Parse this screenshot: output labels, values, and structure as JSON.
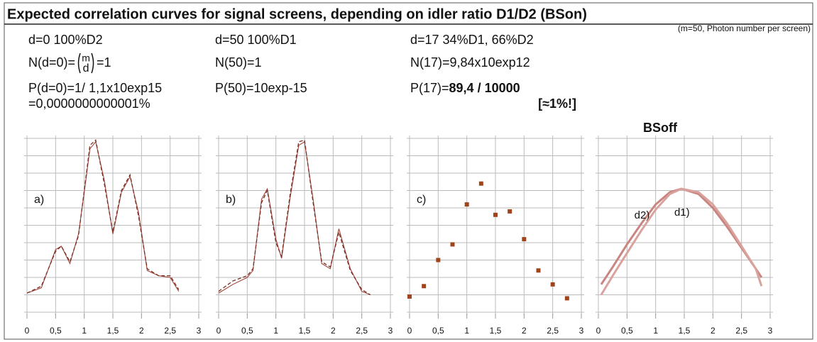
{
  "title": "Expected correlation curves for signal screens, depending on idler ratio D1/D2  (BSon)",
  "subtitle": "(m=50, Photon number per screen)",
  "chart_data": [
    {
      "type": "line",
      "label": "a)",
      "annotations": [
        {
          "parts": [
            {
              "text": "d=0     100%D2"
            }
          ]
        },
        {
          "parts": [
            {
              "text": "N(d=0)="
            },
            {
              "binom": [
                "m",
                "d"
              ]
            },
            {
              "text": "=1"
            }
          ]
        },
        {
          "parts": [
            {
              "text": "P(d=0)=1/ 1,1x10exp15"
            }
          ]
        },
        {
          "parts": [
            {
              "text": " =0,0000000000001%"
            }
          ]
        }
      ],
      "x": [
        0,
        0.25,
        0.5,
        0.6,
        0.75,
        0.9,
        1.0,
        1.1,
        1.2,
        1.35,
        1.5,
        1.65,
        1.8,
        1.95,
        2.1,
        2.3,
        2.5,
        2.65
      ],
      "series": [
        {
          "color": "#a0443a",
          "dash": false,
          "values": [
            1.1,
            1.4,
            3.6,
            3.8,
            2.8,
            4.5,
            6.9,
            9.4,
            9.8,
            7.6,
            4.5,
            6.9,
            7.8,
            5.7,
            2.4,
            2.1,
            2.0,
            1.2
          ]
        },
        {
          "color": "#7a2e22",
          "dash": true,
          "values": [
            1.1,
            1.5,
            3.5,
            3.8,
            2.9,
            4.4,
            7.0,
            9.6,
            9.9,
            7.4,
            4.6,
            7.0,
            7.9,
            5.5,
            2.5,
            2.1,
            2.1,
            1.3
          ]
        }
      ],
      "xlim": [
        0,
        3
      ],
      "xticks": [
        0,
        {
          "value": 0.5,
          "label": "0,5"
        },
        1,
        {
          "value": 1.5,
          "label": "1,5"
        },
        2,
        {
          "value": 2.5,
          "label": "2,5"
        },
        3
      ],
      "ylim": [
        0,
        10
      ],
      "yticks": [
        0,
        1,
        2,
        3,
        4,
        5,
        6,
        7,
        8,
        9,
        10
      ],
      "grid": true
    },
    {
      "type": "line",
      "label": "b)",
      "annotations": [
        {
          "parts": [
            {
              "text": "d=50   100%D1"
            }
          ]
        },
        {
          "parts": [
            {
              "text": "N(50)=1"
            }
          ]
        },
        {
          "parts": [
            {
              "text": "P(50)=10exp-15"
            }
          ]
        }
      ],
      "x": [
        0,
        0.25,
        0.5,
        0.6,
        0.75,
        0.85,
        1.0,
        1.1,
        1.25,
        1.4,
        1.5,
        1.65,
        1.8,
        1.95,
        2.1,
        2.3,
        2.5,
        2.65
      ],
      "series": [
        {
          "color": "#a0443a",
          "dash": false,
          "values": [
            1.1,
            1.6,
            2.0,
            2.4,
            6.5,
            7.1,
            4.2,
            3.1,
            6.6,
            9.6,
            9.8,
            6.5,
            2.8,
            2.5,
            4.8,
            2.5,
            1.2,
            1.0
          ]
        },
        {
          "color": "#7a2e22",
          "dash": true,
          "values": [
            1.2,
            1.8,
            2.1,
            2.5,
            6.3,
            7.0,
            4.0,
            3.2,
            6.8,
            9.8,
            9.9,
            6.3,
            2.9,
            2.6,
            4.6,
            2.4,
            1.3,
            1.0
          ]
        }
      ],
      "xlim": [
        0,
        3
      ],
      "xticks": [
        0,
        {
          "value": 0.5,
          "label": "0,5"
        },
        1,
        {
          "value": 1.5,
          "label": "1,5"
        },
        2,
        {
          "value": 2.5,
          "label": "2,5"
        },
        3
      ],
      "ylim": [
        0,
        10
      ],
      "yticks": [
        0,
        1,
        2,
        3,
        4,
        5,
        6,
        7,
        8,
        9,
        10
      ],
      "grid": true
    },
    {
      "type": "scatter",
      "label": "c)",
      "annotations": [
        {
          "parts": [
            {
              "text": "d=17  34%D1, 66%D2"
            }
          ]
        },
        {
          "parts": [
            {
              "text": "N(17)=9,84x10exp12"
            }
          ]
        },
        {
          "parts": [
            {
              "text": "P(17)="
            },
            {
              "text": "89,4 / 10000",
              "bold": true
            }
          ]
        },
        {
          "parts": [
            {
              "text": "[≈1%!]",
              "bold": true
            }
          ]
        }
      ],
      "x": [
        0,
        0.25,
        0.5,
        0.75,
        1.0,
        1.25,
        1.5,
        1.75,
        2.0,
        2.25,
        2.5,
        2.75
      ],
      "values": [
        0.9,
        1.5,
        3.0,
        3.9,
        6.2,
        7.4,
        5.6,
        5.8,
        4.2,
        2.4,
        1.6,
        0.8
      ],
      "color": "#a0441c",
      "xlim": [
        0,
        3
      ],
      "xticks": [
        0,
        {
          "value": 0.5,
          "label": "0,5"
        },
        1,
        {
          "value": 1.5,
          "label": "1,5"
        },
        2,
        {
          "value": 2.5,
          "label": "2,5"
        },
        3
      ],
      "ylim": [
        0,
        10
      ],
      "yticks": [
        0,
        1,
        2,
        3,
        4,
        5,
        6,
        7,
        8,
        9,
        10
      ],
      "grid": true
    },
    {
      "type": "line",
      "title": "BSoff",
      "x": [
        0.05,
        0.25,
        0.5,
        0.75,
        1.0,
        1.25,
        1.45,
        1.75,
        2.0,
        2.25,
        2.5,
        2.75,
        2.85
      ],
      "series": [
        {
          "name": "d2)",
          "color": "#c98580",
          "dash": false,
          "values": [
            1.6,
            2.6,
            3.9,
            5.1,
            6.2,
            6.9,
            7.1,
            6.8,
            6.0,
            4.9,
            3.7,
            2.5,
            2.0
          ]
        },
        {
          "name": "d1)",
          "color": "#d9a29d",
          "dash": false,
          "values": [
            1.0,
            2.1,
            3.4,
            4.7,
            5.9,
            6.8,
            7.1,
            6.9,
            6.2,
            5.1,
            3.8,
            2.5,
            1.5
          ]
        }
      ],
      "xlim": [
        0,
        3
      ],
      "xticks": [
        0,
        {
          "value": 0.5,
          "label": "0,5"
        },
        1,
        {
          "value": 1.5,
          "label": "1,5"
        },
        2,
        {
          "value": 2.5,
          "label": "2,5"
        },
        3
      ],
      "ylim": [
        0,
        10
      ],
      "yticks": [
        0,
        1,
        2,
        3,
        4,
        5,
        6,
        7,
        8,
        9,
        10
      ],
      "grid": true
    }
  ]
}
